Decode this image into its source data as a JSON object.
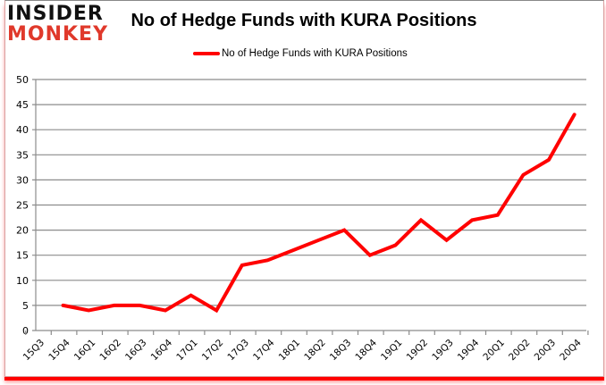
{
  "brand": {
    "line1": "INSIDER",
    "line2": "MONKEY"
  },
  "chart_data": {
    "type": "line",
    "title": "No of Hedge Funds with KURA Positions",
    "xlabel": "",
    "ylabel": "",
    "legend": {
      "position": "top",
      "entries": [
        "No of Hedge Funds with KURA Positions"
      ]
    },
    "grid": true,
    "ylim": [
      0,
      50
    ],
    "yticks": [
      0,
      5,
      10,
      15,
      20,
      25,
      30,
      35,
      40,
      45,
      50
    ],
    "categories": [
      "15Q3",
      "15Q4",
      "16Q1",
      "16Q2",
      "16Q3",
      "16Q4",
      "17Q1",
      "17Q2",
      "17Q3",
      "17Q4",
      "18Q1",
      "18Q2",
      "18Q3",
      "18Q4",
      "19Q1",
      "19Q2",
      "19Q3",
      "19Q4",
      "20Q1",
      "20Q2",
      "20Q3",
      "20Q4"
    ],
    "series": [
      {
        "name": "No of Hedge Funds with KURA Positions",
        "color": "#ff0000",
        "values": [
          null,
          5,
          4,
          5,
          5,
          4,
          7,
          4,
          13,
          14,
          16,
          18,
          20,
          15,
          17,
          22,
          18,
          22,
          23,
          31,
          34,
          43
        ]
      }
    ]
  }
}
